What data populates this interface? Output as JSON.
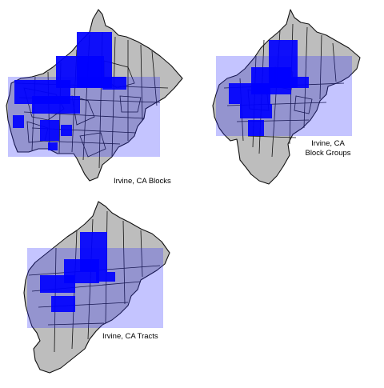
{
  "maps": [
    {
      "id": "blocks",
      "caption_lines": [
        "Irvine, CA Blocks"
      ]
    },
    {
      "id": "block-groups",
      "caption_lines": [
        "Irvine, CA",
        "Block Groups"
      ]
    },
    {
      "id": "tracts",
      "caption_lines": [
        "Irvine, CA Tracts"
      ]
    }
  ],
  "colors": {
    "background": "#ffffff",
    "land": "#bdbdbd",
    "boundary": "#111111",
    "population_dots": "#0000ff"
  }
}
